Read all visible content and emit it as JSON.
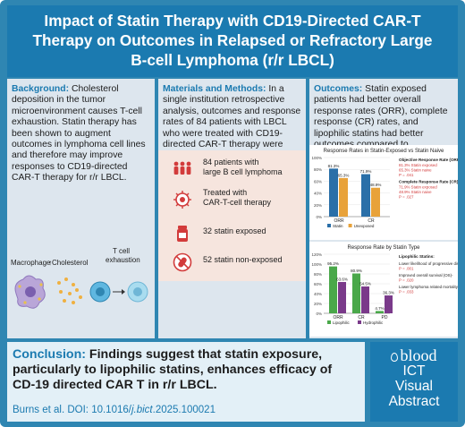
{
  "header": {
    "title_line1": "Impact of Statin Therapy with CD19-Directed CAR-T",
    "title_line2": "Therapy on Outcomes in Relapsed or Refractory Large",
    "title_line3": "B-cell Lymphoma (r/r LBCL)"
  },
  "background": {
    "heading": "Background:",
    "body": "Cholesterol deposition in the tumor microenvironment causes T-cell exhaustion. Statin therapy has been shown to augment outcomes in lymphoma cell lines and therefore may improve responses to CD19-directed CAR-T therapy for r/r LBCL.",
    "macrophage_label": "Macrophage",
    "cholesterol_label": "↑Cholesterol",
    "tcell_label_1": "T cell",
    "tcell_label_2": "exhaustion"
  },
  "methods": {
    "heading": "Materials and Methods:",
    "body": "In a single institution retrospective analysis, outcomes and response rates of 84 patients with LBCL who were treated with CD19-directed CAR-T therapy were evaluated based on statin exposure.",
    "items": [
      {
        "line1": "84 patients with",
        "line2": "large B cell lymphoma",
        "icon": "patients-icon"
      },
      {
        "line1": "Treated with",
        "line2": "CAR-T-cell therapy",
        "icon": "car-t-cell-icon"
      },
      {
        "line1": "32 statin exposed",
        "line2": "",
        "icon": "pill-bottle-icon"
      },
      {
        "line1": "52 statin non-exposed",
        "line2": "",
        "icon": "no-pill-icon"
      }
    ]
  },
  "outcomes": {
    "heading": "Outcomes:",
    "body": "Statin exposed patients had better overall response rates (ORR), complete response (CR) rates, and lipophilic statins had better outcomes compared to hydrophilic statins."
  },
  "chart_data": [
    {
      "type": "bar",
      "title": "Response Rates in Statin-Exposed vs Statin Naive",
      "categories": [
        "ORR",
        "CR"
      ],
      "series": [
        {
          "name": "Statin",
          "values": [
            81.3,
            71.9
          ],
          "labels": [
            "81.3%",
            "71.9%"
          ],
          "color": "#2a6fa8"
        },
        {
          "name": "Unexposed",
          "values": [
            65.3,
            48.9
          ],
          "labels": [
            "65.3%",
            "48.9%"
          ],
          "color": "#e8a23a"
        }
      ],
      "ylim": [
        0,
        100
      ],
      "yticks": [
        "0%",
        "20%",
        "40%",
        "60%",
        "80%",
        "100%"
      ],
      "annotations": [
        {
          "heading": "Objective Response Rate (ORR)",
          "lines": [
            "81.3% Statin exposed",
            "65.3% Statin naive",
            "P = .041"
          ]
        },
        {
          "heading": "Complete Response Rate (CR)",
          "lines": [
            "71.9% Statin exposed",
            "48.9% Statin naive",
            "P = .027"
          ]
        }
      ]
    },
    {
      "type": "bar",
      "title": "Response Rate by Statin Type",
      "categories": [
        "ORR",
        "CR",
        "PD"
      ],
      "series": [
        {
          "name": "Lipophilic",
          "values": [
            95.2,
            80.9,
            4.7
          ],
          "labels": [
            "95.2%",
            "80.9%",
            "4.7%"
          ],
          "color": "#4aa84a"
        },
        {
          "name": "Hydrophilic",
          "values": [
            63.6,
            54.5,
            36.3
          ],
          "labels": [
            "63.6%",
            "54.5%",
            "36.3%"
          ],
          "color": "#7a3a8a"
        }
      ],
      "ylim": [
        0,
        120
      ],
      "yticks": [
        "0%",
        "20%",
        "40%",
        "60%",
        "80%",
        "100%",
        "120%"
      ],
      "annotations": [
        {
          "heading": "Lipophilic Statins:",
          "lines": []
        },
        {
          "heading": "",
          "lines": [
            "Lower likelihood of progressive disease-",
            "P = .001"
          ]
        },
        {
          "heading": "",
          "lines": [
            "Improved overall survival (OS)-",
            "P = .020"
          ]
        },
        {
          "heading": "",
          "lines": [
            "Lower lymphoma related mortality-",
            "P = .033"
          ]
        }
      ]
    }
  ],
  "conclusion": {
    "heading": "Conclusion:",
    "line1_rest": "Findings suggest that statin exposure,",
    "line2": "particularly to lipophilic statins, enhances efficacy of",
    "line3": "CD-19 directed CAR T in r/r LBCL.",
    "citation_prefix": "Burns et al. DOI: 10.1016/",
    "citation_journal": "j.bict",
    "citation_suffix": ".2025.100021"
  },
  "badge": {
    "brand": "blood",
    "line1": "ICT",
    "line2": "Visual",
    "line3": "Abstract"
  },
  "colors": {
    "primary": "#1b7ab0",
    "panel": "#dde6ee",
    "accent_red": "#d23b3b"
  }
}
